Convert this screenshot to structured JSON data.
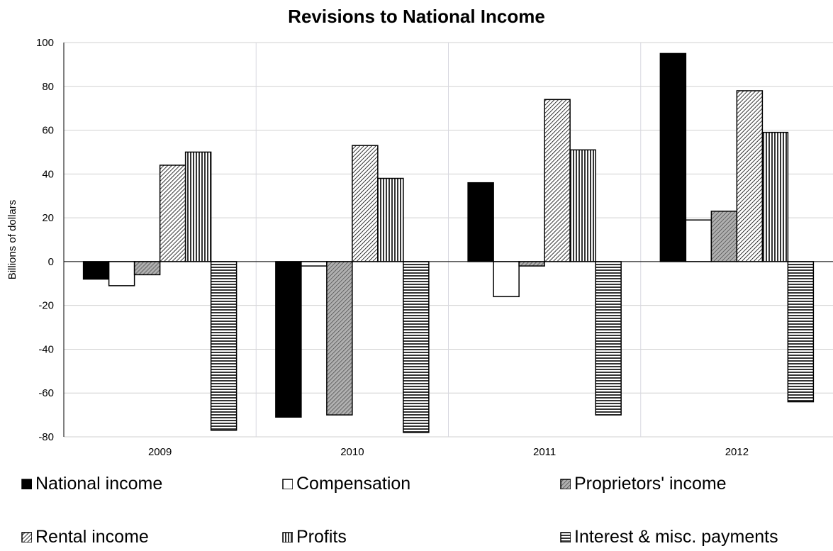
{
  "chart_data": {
    "type": "bar",
    "title": "Revisions to National Income",
    "ylabel": "Billions of dollars",
    "xlabel": "",
    "ylim": [
      -80,
      100
    ],
    "yticks": [
      100,
      80,
      60,
      40,
      20,
      0,
      -20,
      -40,
      -60,
      -80
    ],
    "categories": [
      "2009",
      "2010",
      "2011",
      "2012"
    ],
    "grid": true,
    "legend_position": "bottom",
    "series": [
      {
        "name": "National income",
        "pattern": "solid",
        "values": [
          -8,
          -71,
          36,
          95
        ]
      },
      {
        "name": "Compensation",
        "pattern": "hollow",
        "values": [
          -11,
          -2,
          -16,
          19
        ]
      },
      {
        "name": "Proprietors' income",
        "pattern": "diagonal-gray",
        "values": [
          -6,
          -70,
          -2,
          23
        ]
      },
      {
        "name": "Rental income",
        "pattern": "diagonal",
        "values": [
          44,
          53,
          74,
          78
        ]
      },
      {
        "name": "Profits",
        "pattern": "vertical",
        "values": [
          50,
          38,
          51,
          59
        ]
      },
      {
        "name": "Interest & misc. payments",
        "pattern": "horizontal",
        "values": [
          -77,
          -78,
          -70,
          -64
        ]
      }
    ]
  }
}
